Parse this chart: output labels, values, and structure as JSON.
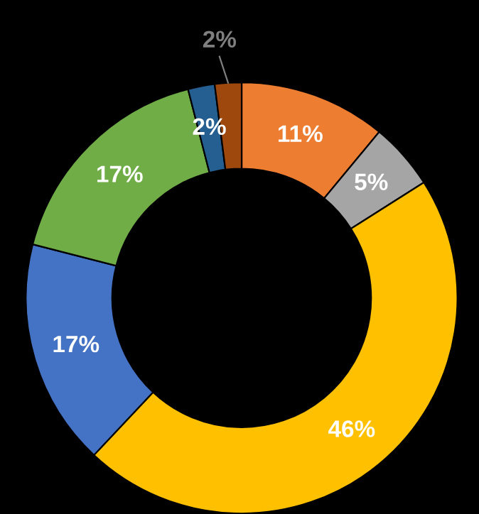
{
  "chart_data": {
    "type": "donut",
    "categories": [
      null,
      null,
      null,
      null,
      null,
      null,
      null
    ],
    "values": [
      11,
      5,
      46,
      17,
      17,
      2,
      2
    ],
    "colors": [
      "#ed7d31",
      "#a5a5a5",
      "#ffc000",
      "#4472c4",
      "#70ad47",
      "#255e91",
      "#9e480e"
    ],
    "value_labels": [
      "11%",
      "5%",
      "46%",
      "17%",
      "17%",
      "2%",
      "2%"
    ],
    "legend": false
  }
}
